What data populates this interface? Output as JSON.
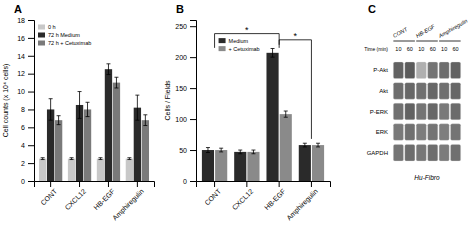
{
  "chart_data": [
    {
      "type": "bar",
      "title": "A",
      "categories": [
        "CONT",
        "CXCL12",
        "HB-EGF",
        "Amphiregulin"
      ],
      "series": [
        {
          "name": "0 h",
          "color": "#c8c8c8",
          "values": [
            2.5,
            2.5,
            2.5,
            2.5
          ],
          "errors": [
            0.1,
            0.1,
            0.1,
            0.1
          ]
        },
        {
          "name": "72 h Medium",
          "color": "#2a2a2a",
          "values": [
            8.0,
            8.5,
            12.5,
            8.2
          ],
          "errors": [
            1.2,
            1.5,
            0.6,
            1.4
          ]
        },
        {
          "name": "72 h + Cetuximab",
          "color": "#7a7a7a",
          "values": [
            6.8,
            8.0,
            11.0,
            6.8
          ],
          "errors": [
            0.5,
            0.8,
            0.6,
            0.6
          ]
        }
      ],
      "ylabel": "Cell counts (x 10⁴ cells)",
      "ylim": [
        0,
        18
      ],
      "yticks": [
        0,
        2,
        4,
        6,
        8,
        10,
        12,
        14,
        16,
        18
      ],
      "legend": "upper left",
      "grid": false
    },
    {
      "type": "bar",
      "title": "B",
      "categories": [
        "CONT",
        "CXCL12",
        "HB-EGF",
        "Amphiregulin"
      ],
      "series": [
        {
          "name": "Medium",
          "color": "#2a2a2a",
          "values": [
            50,
            47,
            207,
            58
          ],
          "errors": [
            4,
            3,
            7,
            3
          ]
        },
        {
          "name": "+ Cetuximab",
          "color": "#8a8a8a",
          "values": [
            50,
            47,
            108,
            58
          ],
          "errors": [
            3,
            3,
            5,
            3
          ]
        }
      ],
      "ylabel": "Cells / Fields",
      "ylim": [
        0,
        260
      ],
      "yticks": [
        0,
        50,
        100,
        150,
        200,
        250
      ],
      "annotations": [
        {
          "x1": 0,
          "x2": 2,
          "y": 238,
          "y_left": 215,
          "y_right": 220,
          "label": "*"
        },
        {
          "x1": 2,
          "x2": 3,
          "y": 228,
          "y_left": 215,
          "y_right": 68,
          "label": "*"
        }
      ],
      "legend": "upper left",
      "grid": false
    },
    {
      "type": "heatmap",
      "title": "C",
      "subtitle": "Hu-Fibro",
      "xlabel": "Time (min)",
      "categories": [
        "10",
        "60",
        "10",
        "60",
        "10",
        "60"
      ],
      "groups": [
        "CONT",
        "HB-EGF",
        "Amphiregulin"
      ],
      "rows": [
        "P-Akt",
        "Akt",
        "P-ERK",
        "ERK",
        "GAPDH"
      ],
      "cells": [
        [
          0.88,
          0.92,
          0.45,
          0.78,
          0.82,
          0.88
        ],
        [
          0.82,
          0.85,
          0.8,
          0.85,
          0.8,
          0.85
        ],
        [
          0.8,
          0.88,
          0.78,
          0.85,
          0.75,
          0.83
        ],
        [
          0.75,
          0.8,
          0.73,
          0.78,
          0.72,
          0.78
        ],
        [
          0.78,
          0.82,
          0.76,
          0.82,
          0.74,
          0.8
        ]
      ]
    }
  ]
}
